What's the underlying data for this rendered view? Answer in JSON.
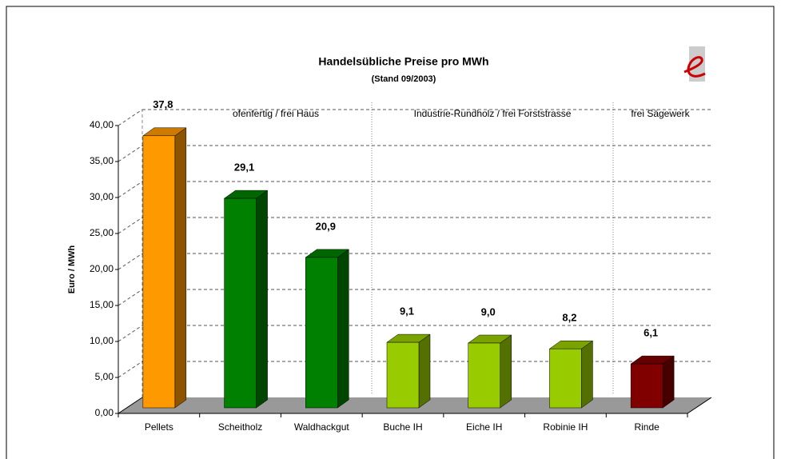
{
  "chart_data": {
    "type": "bar3d",
    "title": "Handelsübliche Preise pro MWh",
    "subtitle": "(Stand 09/2003)",
    "y_label": "Euro / MWh",
    "annotations": [
      "ofenfertig / frei Haus",
      "Industrie-Rundholz / frei Forststrasse",
      "frei Sägewerk"
    ],
    "categories": [
      "Pellets",
      "Scheitholz",
      "Waldhackgut",
      "Buche IH",
      "Eiche IH",
      "Robinie IH",
      "Rinde"
    ],
    "values": [
      37.8,
      29.1,
      20.9,
      9.1,
      9.0,
      8.2,
      6.1
    ],
    "value_labels": [
      "37,8",
      "29,1",
      "20,9",
      "9,1",
      "9,0",
      "8,2",
      "6,1"
    ],
    "colors": [
      "#ff9900",
      "#008000",
      "#008000",
      "#99cc00",
      "#99cc00",
      "#99cc00",
      "#800000"
    ],
    "ylim": [
      0,
      40
    ],
    "yticks": [
      {
        "value": 0,
        "label": "0,00"
      },
      {
        "value": 5,
        "label": "5,00"
      },
      {
        "value": 10,
        "label": "10,00"
      },
      {
        "value": 15,
        "label": "15,00"
      },
      {
        "value": 20,
        "label": "20,00"
      },
      {
        "value": 25,
        "label": "25,00"
      },
      {
        "value": 30,
        "label": "30,00"
      },
      {
        "value": 35,
        "label": "35,00"
      },
      {
        "value": 40,
        "label": "40,00"
      }
    ],
    "grid": true
  }
}
